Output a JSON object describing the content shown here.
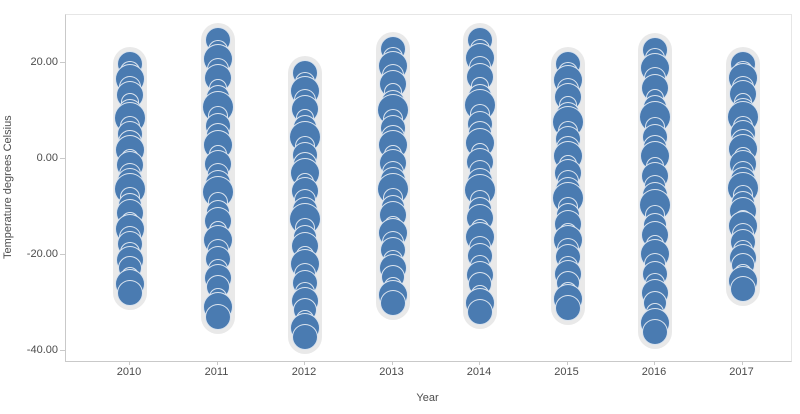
{
  "chart_data": {
    "type": "scatter",
    "title": "",
    "xlabel": "Year",
    "ylabel": "Temperature degrees Celsius",
    "x_categories": [
      "2010",
      "2011",
      "2012",
      "2013",
      "2014",
      "2015",
      "2016",
      "2017"
    ],
    "y_ticks": [
      {
        "label": "20.00",
        "value": 20
      },
      {
        "label": "0.00",
        "value": 0
      },
      {
        "label": "-20.00",
        "value": -20
      },
      {
        "label": "-40.00",
        "value": -40
      }
    ],
    "ylim": [
      -42,
      30
    ],
    "grid": false,
    "legend": "none",
    "point_color": "#4a7bb1",
    "point_stroke": "#ffffff",
    "band_color": "#e9e9e9",
    "sizes_pattern": [
      13,
      10,
      15,
      11,
      14,
      9,
      12,
      16,
      10,
      13,
      12,
      15,
      9,
      14,
      11,
      13,
      16,
      10,
      12,
      14,
      9,
      15,
      11,
      13,
      10,
      14,
      12,
      9,
      15,
      13
    ],
    "series": [
      {
        "year": "2010",
        "values": [
          19.8,
          18.3,
          16.7,
          15.1,
          13.4,
          11.8,
          10.1,
          8.5,
          6.9,
          5.2,
          3.6,
          1.9,
          0.3,
          -1.3,
          -3.0,
          -4.6,
          -6.3,
          -7.9,
          -9.5,
          -11.2,
          -12.8,
          -14.5,
          -16.1,
          -17.7,
          -19.4,
          -21.0,
          -22.7,
          -24.3,
          -26.0,
          -27.8
        ]
      },
      {
        "year": "2011",
        "values": [
          24.8,
          22.8,
          20.8,
          18.8,
          16.8,
          14.9,
          12.9,
          10.9,
          8.9,
          6.9,
          5.0,
          3.0,
          1.0,
          -1.0,
          -3.0,
          -4.9,
          -6.9,
          -8.9,
          -10.9,
          -12.9,
          -14.8,
          -16.8,
          -18.8,
          -20.8,
          -22.8,
          -24.7,
          -26.7,
          -28.7,
          -30.7,
          -32.8
        ]
      },
      {
        "year": "2012",
        "values": [
          17.9,
          16.1,
          14.2,
          12.3,
          10.4,
          8.5,
          6.6,
          4.7,
          2.8,
          0.9,
          -1.0,
          -2.9,
          -4.8,
          -6.7,
          -8.6,
          -10.5,
          -12.4,
          -14.3,
          -16.2,
          -18.1,
          -20.0,
          -21.9,
          -23.8,
          -25.7,
          -27.6,
          -29.5,
          -31.4,
          -33.3,
          -35.2,
          -37.0
        ]
      },
      {
        "year": "2013",
        "values": [
          22.9,
          21.2,
          19.3,
          17.5,
          15.7,
          13.9,
          12.0,
          10.2,
          8.4,
          6.5,
          4.7,
          2.9,
          1.1,
          -0.8,
          -2.6,
          -4.4,
          -6.2,
          -8.1,
          -9.9,
          -11.7,
          -13.6,
          -15.4,
          -17.2,
          -19.0,
          -20.9,
          -22.7,
          -24.5,
          -26.3,
          -28.2,
          -29.9
        ]
      },
      {
        "year": "2014",
        "values": [
          24.9,
          23.0,
          21.1,
          19.1,
          17.1,
          15.2,
          13.2,
          11.3,
          9.3,
          7.3,
          5.4,
          3.4,
          1.4,
          -0.5,
          -2.5,
          -4.5,
          -6.4,
          -8.4,
          -10.3,
          -12.3,
          -14.3,
          -16.2,
          -18.2,
          -20.2,
          -22.1,
          -24.1,
          -26.0,
          -28.0,
          -30.0,
          -31.9
        ]
      },
      {
        "year": "2015",
        "values": [
          19.9,
          18.2,
          16.5,
          14.7,
          13.0,
          11.2,
          9.4,
          7.7,
          5.9,
          4.2,
          2.4,
          0.7,
          -1.1,
          -2.9,
          -4.6,
          -6.4,
          -8.1,
          -9.9,
          -11.6,
          -13.4,
          -15.2,
          -16.9,
          -18.7,
          -20.4,
          -22.2,
          -23.9,
          -25.7,
          -27.5,
          -29.2,
          -30.9
        ]
      },
      {
        "year": "2016",
        "values": [
          22.8,
          21.0,
          18.9,
          16.9,
          14.9,
          12.8,
          10.8,
          8.7,
          6.7,
          4.7,
          2.6,
          0.6,
          -1.4,
          -3.5,
          -5.5,
          -7.5,
          -9.6,
          -11.6,
          -13.6,
          -15.7,
          -17.7,
          -19.7,
          -21.8,
          -23.8,
          -25.8,
          -27.9,
          -29.9,
          -31.9,
          -34.0,
          -35.9
        ]
      },
      {
        "year": "2017",
        "values": [
          19.8,
          18.4,
          16.8,
          15.1,
          13.5,
          11.9,
          10.3,
          8.7,
          7.0,
          5.4,
          3.8,
          2.2,
          0.6,
          -1.1,
          -2.7,
          -4.3,
          -5.9,
          -7.5,
          -9.2,
          -10.8,
          -12.4,
          -14.0,
          -15.6,
          -17.3,
          -18.9,
          -20.5,
          -22.1,
          -23.7,
          -25.4,
          -27.0
        ]
      }
    ]
  }
}
